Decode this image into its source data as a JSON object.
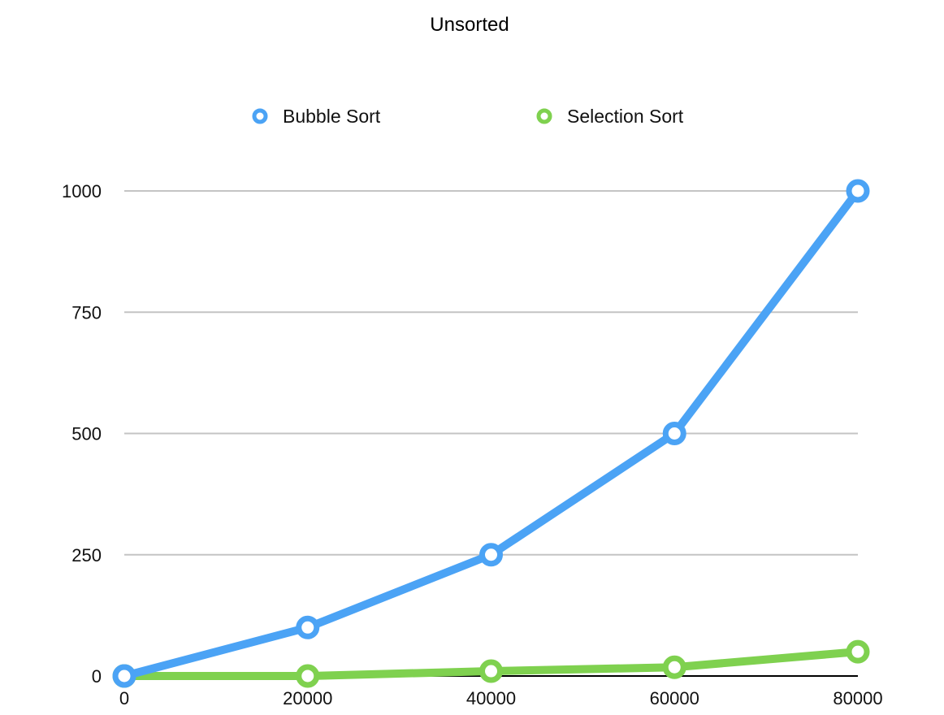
{
  "chart_data": {
    "type": "line",
    "title": "Unsorted",
    "xlabel": "",
    "ylabel": "",
    "x": [
      0,
      20000,
      40000,
      60000,
      80000
    ],
    "x_ticks": [
      "0",
      "20000",
      "40000",
      "60000",
      "80000"
    ],
    "y_ticks": [
      "0",
      "250",
      "500",
      "750",
      "1000"
    ],
    "xlim": [
      0,
      80000
    ],
    "ylim": [
      0,
      1000
    ],
    "grid": true,
    "legend_position": "top-center",
    "series": [
      {
        "name": "Bubble Sort",
        "color": "#4ba3f5",
        "values": [
          0,
          100,
          250,
          500,
          1000
        ]
      },
      {
        "name": "Selection Sort",
        "color": "#7fd14f",
        "values": [
          0,
          0,
          10,
          18,
          50
        ]
      }
    ]
  }
}
